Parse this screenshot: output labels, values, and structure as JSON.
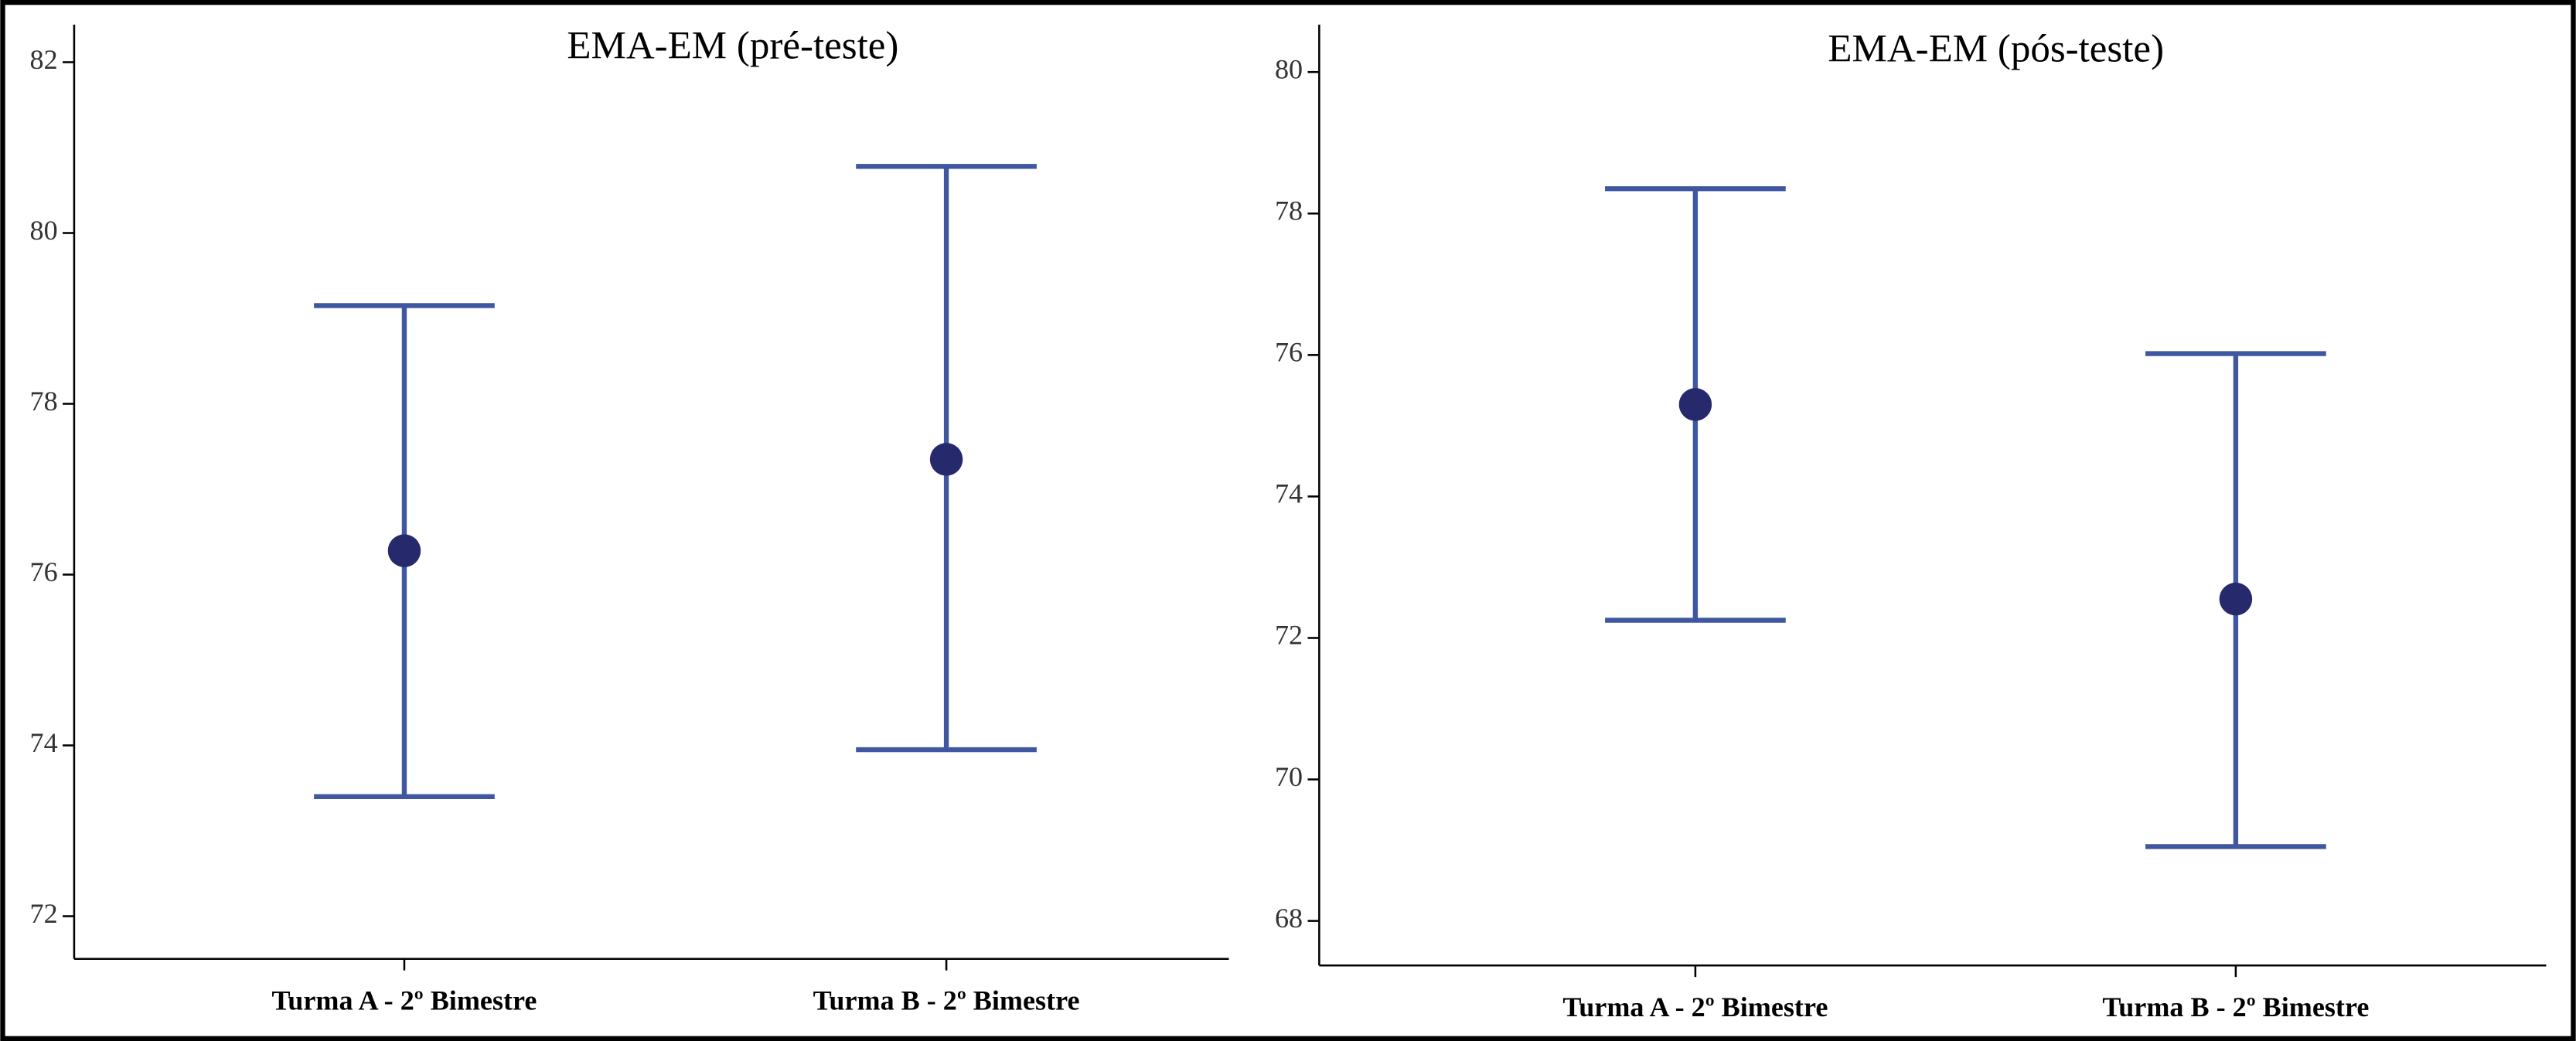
{
  "chart_data": [
    {
      "type": "errorbar",
      "title": "EMA-EM  (pré-teste)",
      "categories": [
        "Turma A - 2º Bimestre",
        "Turma B - 2º Bimestre"
      ],
      "values": [
        76.28,
        77.35
      ],
      "lower": [
        73.4,
        73.95
      ],
      "upper": [
        79.15,
        80.78
      ],
      "color": "#26296b",
      "bar_color": "#3f56a0",
      "ylim": [
        71.5,
        82.44
      ],
      "yticks": [
        72,
        74,
        76,
        78,
        80,
        82
      ]
    },
    {
      "type": "errorbar",
      "title": "EMA-EM  (pós-teste)",
      "categories": [
        "Turma A - 2º Bimestre",
        "Turma B - 2º Bimestre"
      ],
      "values": [
        75.3,
        72.55
      ],
      "lower": [
        72.25,
        69.05
      ],
      "upper": [
        78.35,
        76.02
      ],
      "color": "#26296b",
      "bar_color": "#3f56a0",
      "ylim": [
        67.37,
        80.67
      ],
      "yticks": [
        68,
        70,
        72,
        74,
        76,
        78,
        80
      ]
    }
  ]
}
